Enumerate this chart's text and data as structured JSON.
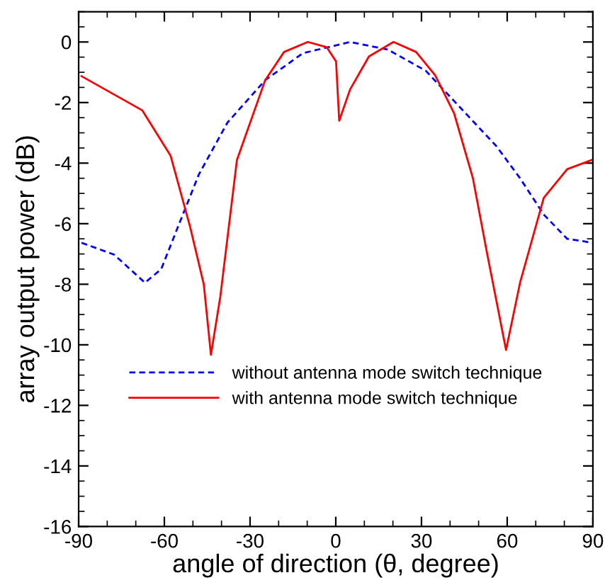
{
  "chart_data": {
    "type": "line",
    "xlabel": "angle of direction (θ, degree)",
    "ylabel": "array output power (dB)",
    "xlim": [
      -90,
      90
    ],
    "ylim": [
      -16,
      1
    ],
    "xticks": [
      -90,
      -60,
      -30,
      0,
      30,
      60,
      90
    ],
    "yticks": [
      -16,
      -14,
      -12,
      -10,
      -8,
      -6,
      -4,
      -2,
      0
    ],
    "grid": false,
    "legend": "bottom",
    "marker": "none",
    "series": [
      {
        "name": "without antenna mode switch technique",
        "color": "#0000ff",
        "line_style": "dashed",
        "x": [
          -89,
          -77.6,
          -66.8,
          -61.1,
          -54.5,
          -47.9,
          -37.9,
          -24.7,
          -11.5,
          5,
          18.2,
          31.5,
          44.7,
          56.3,
          64.5,
          72.8,
          81,
          90
        ],
        "values": [
          -6.63,
          -7.02,
          -7.95,
          -7.5,
          -5.93,
          -4.37,
          -2.66,
          -1.26,
          -0.37,
          0,
          -0.25,
          -0.95,
          -2.28,
          -3.45,
          -4.5,
          -5.7,
          -6.5,
          -6.63
        ]
      },
      {
        "name": "with antenna mode switch technique",
        "color": "#ff0000",
        "line_style": "solid",
        "x": [
          -89,
          -67.7,
          -57.8,
          -51,
          -46.2,
          -43.7,
          -40.4,
          -34.6,
          -24.7,
          -18.1,
          -9.8,
          -3.2,
          0.1,
          1.2,
          5,
          11.6,
          20.2,
          28.1,
          34.8,
          41.4,
          48,
          53,
          59.6,
          64.5,
          72.8,
          81,
          90
        ],
        "values": [
          -1.13,
          -2.26,
          -3.76,
          -6.1,
          -8,
          -10.33,
          -8.4,
          -3.9,
          -1.26,
          -0.33,
          0,
          -0.17,
          -0.64,
          -2.6,
          -1.57,
          -0.48,
          0,
          -0.33,
          -1.1,
          -2.35,
          -4.5,
          -7,
          -10.17,
          -7.95,
          -5.15,
          -4.2,
          -3.88
        ]
      }
    ]
  }
}
